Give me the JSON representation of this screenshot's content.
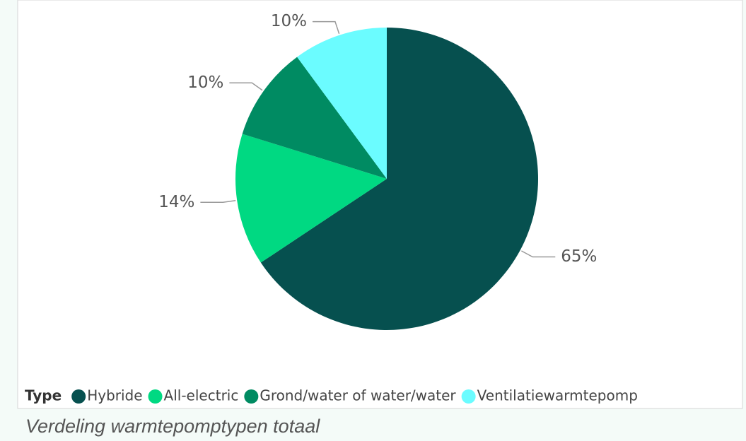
{
  "chart_data": {
    "type": "pie",
    "categories": [
      "Hybride",
      "All-electric",
      "Grond/water of water/water",
      "Ventilatiewarmtepomp"
    ],
    "values": [
      65,
      14,
      10,
      10
    ],
    "value_labels": [
      "65%",
      "14%",
      "10%",
      "10%"
    ],
    "colors": [
      "#06504f",
      "#00d982",
      "#008b62",
      "#6bfcff"
    ],
    "legend_title": "Type",
    "caption": "Verdeling warmtepomptypen totaal"
  }
}
